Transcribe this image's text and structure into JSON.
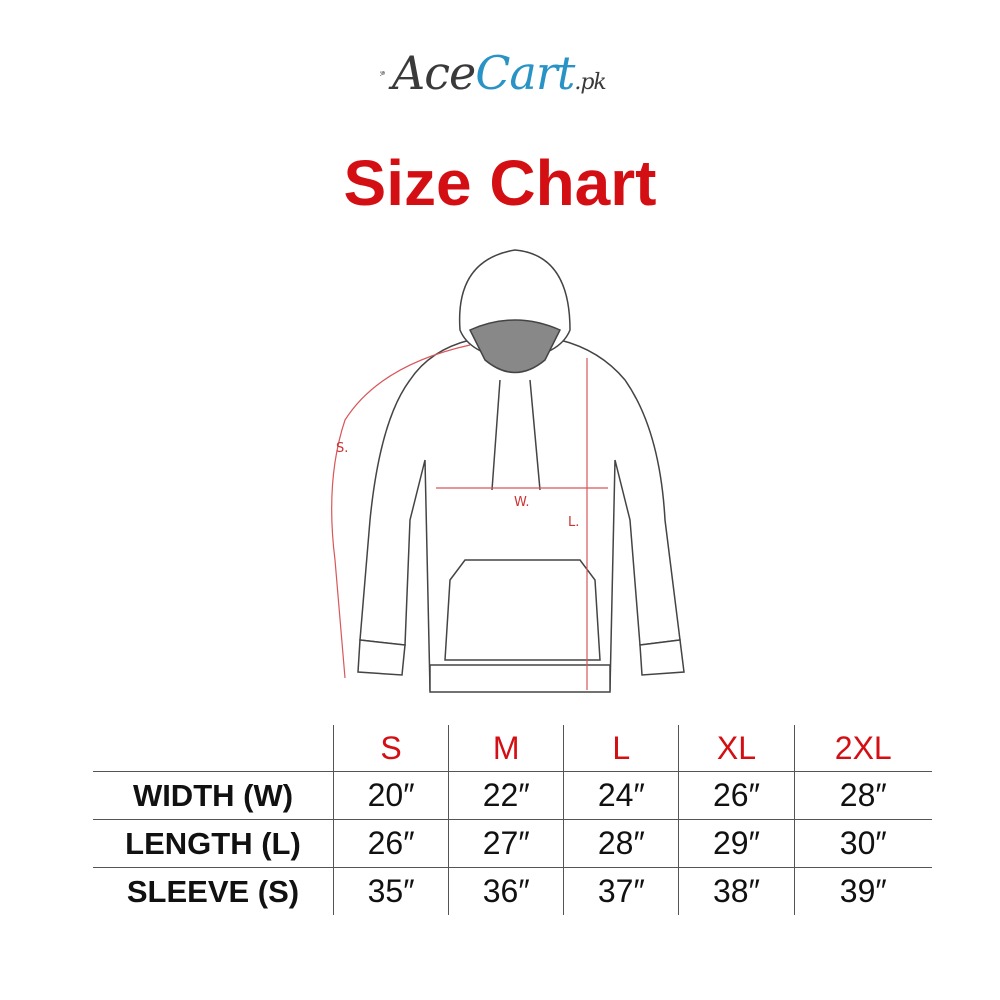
{
  "brand": {
    "name_part1": "Ace",
    "name_part2": "Cart",
    "suffix": ".pk",
    "accent": "#2a93c6"
  },
  "title": "Size Chart",
  "title_color": "#d40f14",
  "diagram": {
    "sleeve_label": "S.",
    "width_label": "W.",
    "length_label": "L."
  },
  "table": {
    "sizes": [
      "S",
      "M",
      "L",
      "XL",
      "2XL"
    ],
    "rows": [
      {
        "label": "WIDTH (W)",
        "values": [
          "20″",
          "22″",
          "24″",
          "26″",
          "28″"
        ]
      },
      {
        "label": "LENGTH (L)",
        "values": [
          "26″",
          "27″",
          "28″",
          "29″",
          "30″"
        ]
      },
      {
        "label": "SLEEVE (S)",
        "values": [
          "35″",
          "36″",
          "37″",
          "38″",
          "39″"
        ]
      }
    ]
  }
}
